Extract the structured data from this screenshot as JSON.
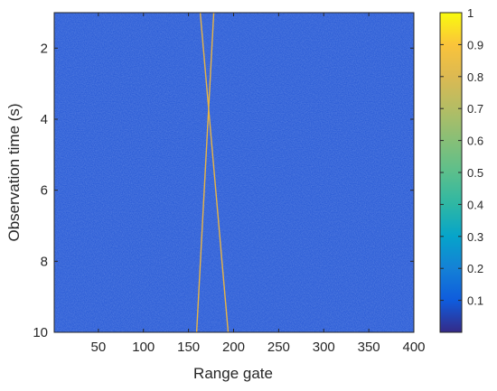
{
  "chart_data": {
    "type": "heatmap",
    "title": "",
    "xlabel": "Range gate",
    "ylabel": "Observation time (s)",
    "xlim": [
      1,
      400
    ],
    "ylim": [
      1,
      10
    ],
    "y_reversed": true,
    "x_ticks": [
      50,
      100,
      150,
      200,
      250,
      300,
      350,
      400
    ],
    "x_tick_labels": [
      "50",
      "100",
      "150",
      "200",
      "250",
      "300",
      "350",
      "400"
    ],
    "y_ticks": [
      2,
      4,
      6,
      8,
      10
    ],
    "y_tick_labels": [
      "2",
      "4",
      "6",
      "8",
      "10"
    ],
    "background_level": 0.1,
    "target_level": 0.75,
    "target_tracks": [
      {
        "name": "",
        "points": [
          {
            "time": 1,
            "gate": 163
          },
          {
            "time": 10,
            "gate": 194
          }
        ]
      },
      {
        "name": "",
        "points": [
          {
            "time": 1,
            "gate": 178
          },
          {
            "time": 10,
            "gate": 159
          }
        ]
      }
    ],
    "colorbar": {
      "colormap": "parula",
      "range": [
        0,
        1
      ],
      "ticks": [
        0.1,
        0.2,
        0.3,
        0.4,
        0.5,
        0.6,
        0.7,
        0.8,
        0.9,
        1
      ],
      "tick_labels": [
        "0.1",
        "0.2",
        "0.3",
        "0.4",
        "0.5",
        "0.6",
        "0.7",
        "0.8",
        "0.9",
        "1"
      ]
    },
    "grid": false
  },
  "colors": {
    "background_blue": "#2a5bd6",
    "noise_dark": "#2f3fae",
    "noise_light": "#2f86d8",
    "target": "#e8b444",
    "axis": "#262626"
  }
}
